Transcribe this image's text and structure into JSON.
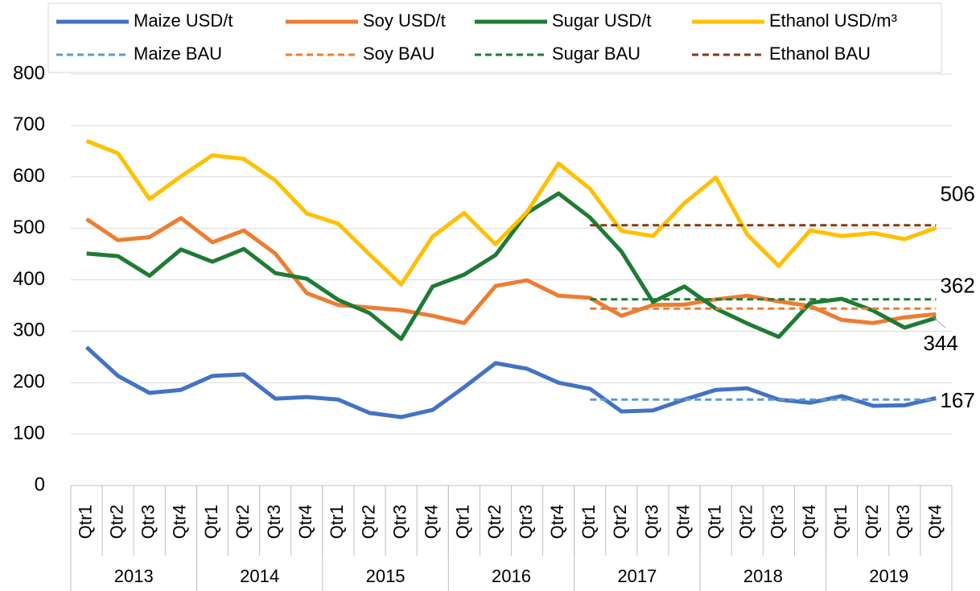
{
  "chart_data": {
    "type": "line",
    "categories": [
      "Qtr1",
      "Qtr2",
      "Qtr3",
      "Qtr4",
      "Qtr1",
      "Qtr2",
      "Qtr3",
      "Qtr4",
      "Qtr1",
      "Qtr2",
      "Qtr3",
      "Qtr4",
      "Qtr1",
      "Qtr2",
      "Qtr3",
      "Qtr4",
      "Qtr1",
      "Qtr2",
      "Qtr3",
      "Qtr4",
      "Qtr1",
      "Qtr2",
      "Qtr3",
      "Qtr4",
      "Qtr1",
      "Qtr2",
      "Qtr3",
      "Qtr4"
    ],
    "category_groups": [
      "2013",
      "2014",
      "2015",
      "2016",
      "2017",
      "2018",
      "2019"
    ],
    "ylim": [
      0,
      800
    ],
    "yticks": [
      0,
      100,
      200,
      300,
      400,
      500,
      600,
      700,
      800
    ],
    "grid": true,
    "legend": "top",
    "series": [
      {
        "name": "Maize USD/t",
        "color": "#4472c4",
        "dashed": false,
        "values": [
          269,
          213,
          180,
          186,
          213,
          216,
          169,
          172,
          167,
          141,
          133,
          147,
          191,
          238,
          227,
          200,
          188,
          144,
          146,
          167,
          186,
          189,
          167,
          161,
          174,
          155,
          156,
          170
        ]
      },
      {
        "name": "Soy USD/t",
        "color": "#ed7d31",
        "dashed": false,
        "values": [
          518,
          477,
          483,
          520,
          473,
          496,
          451,
          374,
          351,
          346,
          341,
          330,
          316,
          388,
          399,
          369,
          365,
          330,
          351,
          352,
          362,
          369,
          358,
          349,
          322,
          316,
          327,
          333
        ]
      },
      {
        "name": "Sugar USD/t",
        "color": "#1e7b34",
        "dashed": false,
        "values": [
          451,
          446,
          408,
          459,
          435,
          460,
          413,
          402,
          361,
          335,
          285,
          387,
          410,
          448,
          530,
          568,
          521,
          455,
          357,
          387,
          344,
          315,
          289,
          355,
          363,
          340,
          307,
          326
        ]
      },
      {
        "name": "Ethanol USD/m³",
        "color": "#ffc000",
        "dashed": false,
        "values": [
          670,
          646,
          557,
          601,
          642,
          635,
          593,
          529,
          509,
          449,
          391,
          484,
          530,
          469,
          532,
          626,
          577,
          495,
          485,
          549,
          599,
          488,
          427,
          496,
          485,
          491,
          479,
          501
        ]
      },
      {
        "name": "Maize BAU",
        "color": "#5b9bd5",
        "dashed": true,
        "values": [
          null,
          null,
          null,
          null,
          null,
          null,
          null,
          null,
          null,
          null,
          null,
          null,
          null,
          null,
          null,
          null,
          167,
          167,
          167,
          167,
          167,
          167,
          167,
          167,
          167,
          167,
          167,
          167
        ]
      },
      {
        "name": "Soy BAU",
        "color": "#ed7d31",
        "dashed": true,
        "values": [
          null,
          null,
          null,
          null,
          null,
          null,
          null,
          null,
          null,
          null,
          null,
          null,
          null,
          null,
          null,
          null,
          344,
          344,
          344,
          344,
          344,
          344,
          344,
          344,
          344,
          344,
          344,
          344
        ]
      },
      {
        "name": "Sugar BAU",
        "color": "#1e7b34",
        "dashed": true,
        "values": [
          null,
          null,
          null,
          null,
          null,
          null,
          null,
          null,
          null,
          null,
          null,
          null,
          null,
          null,
          null,
          null,
          362,
          362,
          362,
          362,
          362,
          362,
          362,
          362,
          362,
          362,
          362,
          362
        ]
      },
      {
        "name": "Ethanol BAU",
        "color": "#843c0c",
        "dashed": true,
        "values": [
          null,
          null,
          null,
          null,
          null,
          null,
          null,
          null,
          null,
          null,
          null,
          null,
          null,
          null,
          null,
          null,
          506,
          506,
          506,
          506,
          506,
          506,
          506,
          506,
          506,
          506,
          506,
          506
        ]
      }
    ]
  }
}
